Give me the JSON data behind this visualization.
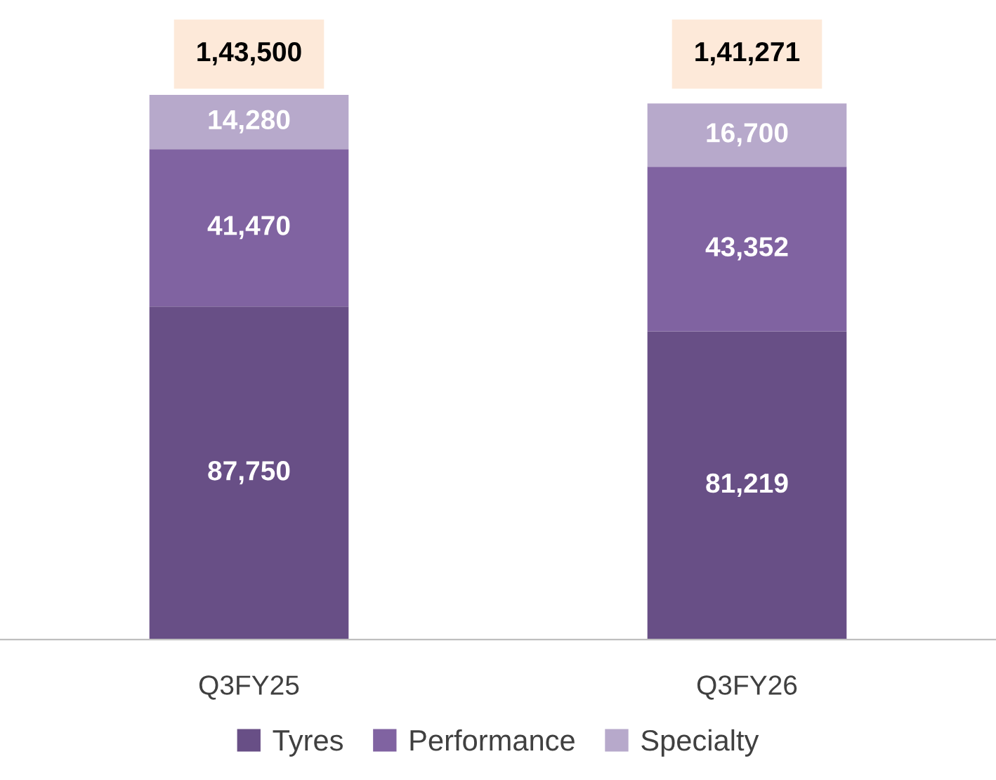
{
  "chart_data": {
    "type": "bar",
    "stacked": true,
    "categories": [
      "Q3FY25",
      "Q3FY26"
    ],
    "series": [
      {
        "name": "Tyres",
        "color": "#684f86",
        "values": [
          87750,
          81219
        ],
        "value_labels": [
          "87,750",
          "81,219"
        ]
      },
      {
        "name": "Performance",
        "color": "#8063a1",
        "values": [
          41470,
          43352
        ],
        "value_labels": [
          "41,470",
          "43,352"
        ]
      },
      {
        "name": "Specialty",
        "color": "#b7a9cb",
        "values": [
          14280,
          16700
        ],
        "value_labels": [
          "14,280",
          "16,700"
        ]
      }
    ],
    "totals": [
      "1,43,500",
      "1,41,271"
    ],
    "legend": "bottom",
    "grid": false
  }
}
